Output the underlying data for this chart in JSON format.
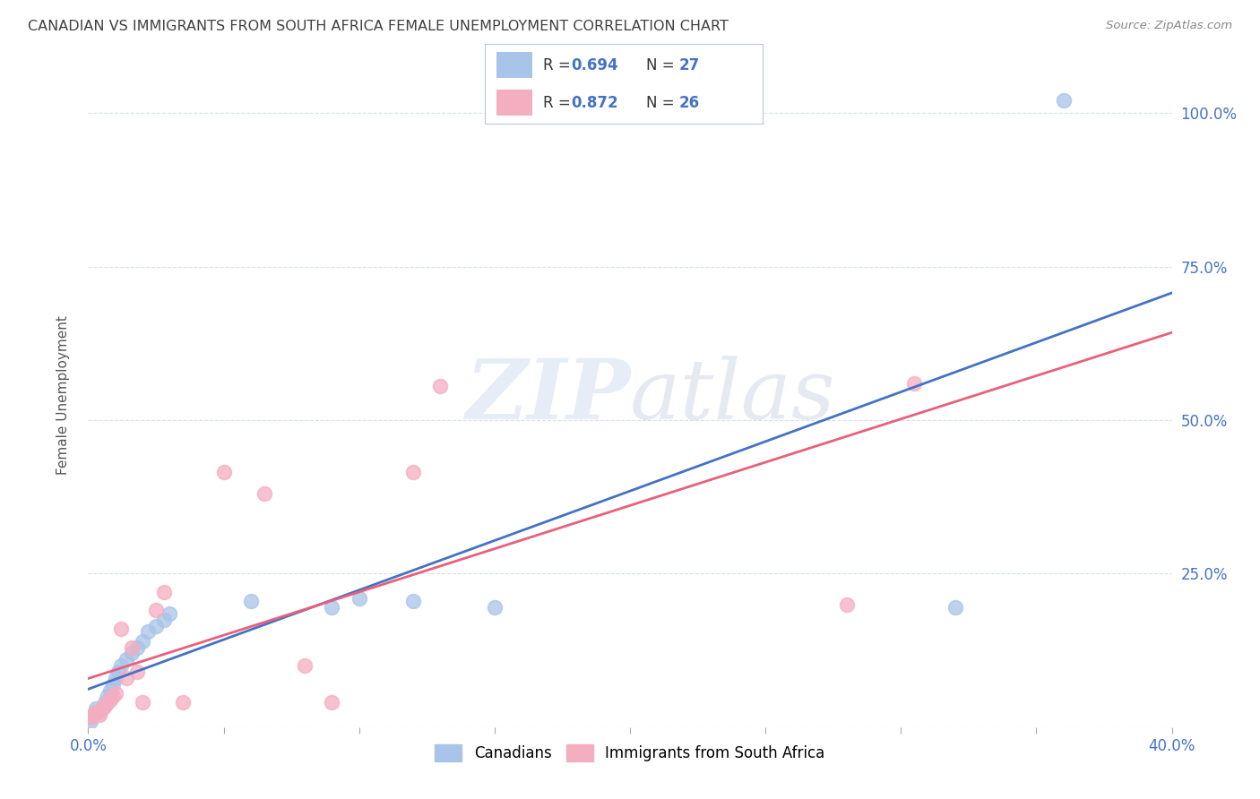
{
  "title": "CANADIAN VS IMMIGRANTS FROM SOUTH AFRICA FEMALE UNEMPLOYMENT CORRELATION CHART",
  "source": "Source: ZipAtlas.com",
  "ylabel": "Female Unemployment",
  "xlim": [
    0.0,
    0.4
  ],
  "ylim": [
    0.0,
    1.08
  ],
  "x_ticks": [
    0.0,
    0.05,
    0.1,
    0.15,
    0.2,
    0.25,
    0.3,
    0.35,
    0.4
  ],
  "x_tick_labels": [
    "0.0%",
    "",
    "",
    "",
    "",
    "",
    "",
    "",
    "40.0%"
  ],
  "y_ticks": [
    0.0,
    0.25,
    0.5,
    0.75,
    1.0
  ],
  "y_tick_labels": [
    "",
    "25.0%",
    "50.0%",
    "75.0%",
    "100.0%"
  ],
  "canadian_color": "#a8c4e8",
  "immigrant_color": "#f5adc0",
  "canadian_line_color": "#4472c4",
  "immigrant_line_color": "#e8607a",
  "legend_r_can": "0.694",
  "legend_n_can": "27",
  "legend_r_imm": "0.872",
  "legend_n_imm": "26",
  "can_x": [
    0.001,
    0.002,
    0.003,
    0.004,
    0.005,
    0.006,
    0.007,
    0.008,
    0.009,
    0.01,
    0.011,
    0.012,
    0.014,
    0.016,
    0.018,
    0.02,
    0.022,
    0.025,
    0.028,
    0.03,
    0.06,
    0.09,
    0.1,
    0.12,
    0.15,
    0.32,
    0.36
  ],
  "can_y": [
    0.01,
    0.02,
    0.03,
    0.025,
    0.03,
    0.04,
    0.05,
    0.06,
    0.07,
    0.08,
    0.09,
    0.1,
    0.11,
    0.12,
    0.13,
    0.14,
    0.155,
    0.165,
    0.175,
    0.185,
    0.205,
    0.195,
    0.21,
    0.205,
    0.195,
    0.195,
    1.02
  ],
  "imm_x": [
    0.001,
    0.002,
    0.003,
    0.004,
    0.005,
    0.006,
    0.007,
    0.008,
    0.009,
    0.01,
    0.012,
    0.014,
    0.016,
    0.018,
    0.02,
    0.025,
    0.028,
    0.035,
    0.05,
    0.065,
    0.08,
    0.09,
    0.12,
    0.13,
    0.28,
    0.305
  ],
  "imm_y": [
    0.015,
    0.02,
    0.025,
    0.02,
    0.03,
    0.035,
    0.04,
    0.045,
    0.05,
    0.055,
    0.16,
    0.08,
    0.13,
    0.09,
    0.04,
    0.19,
    0.22,
    0.04,
    0.415,
    0.38,
    0.1,
    0.04,
    0.415,
    0.555,
    0.2,
    0.56
  ],
  "background_color": "#ffffff",
  "watermark_zip": "ZIP",
  "watermark_atlas": "atlas",
  "grid_color": "#d8dfe8",
  "title_color": "#404040",
  "label_color_blue": "#4472c4",
  "label_color_dark": "#333333"
}
